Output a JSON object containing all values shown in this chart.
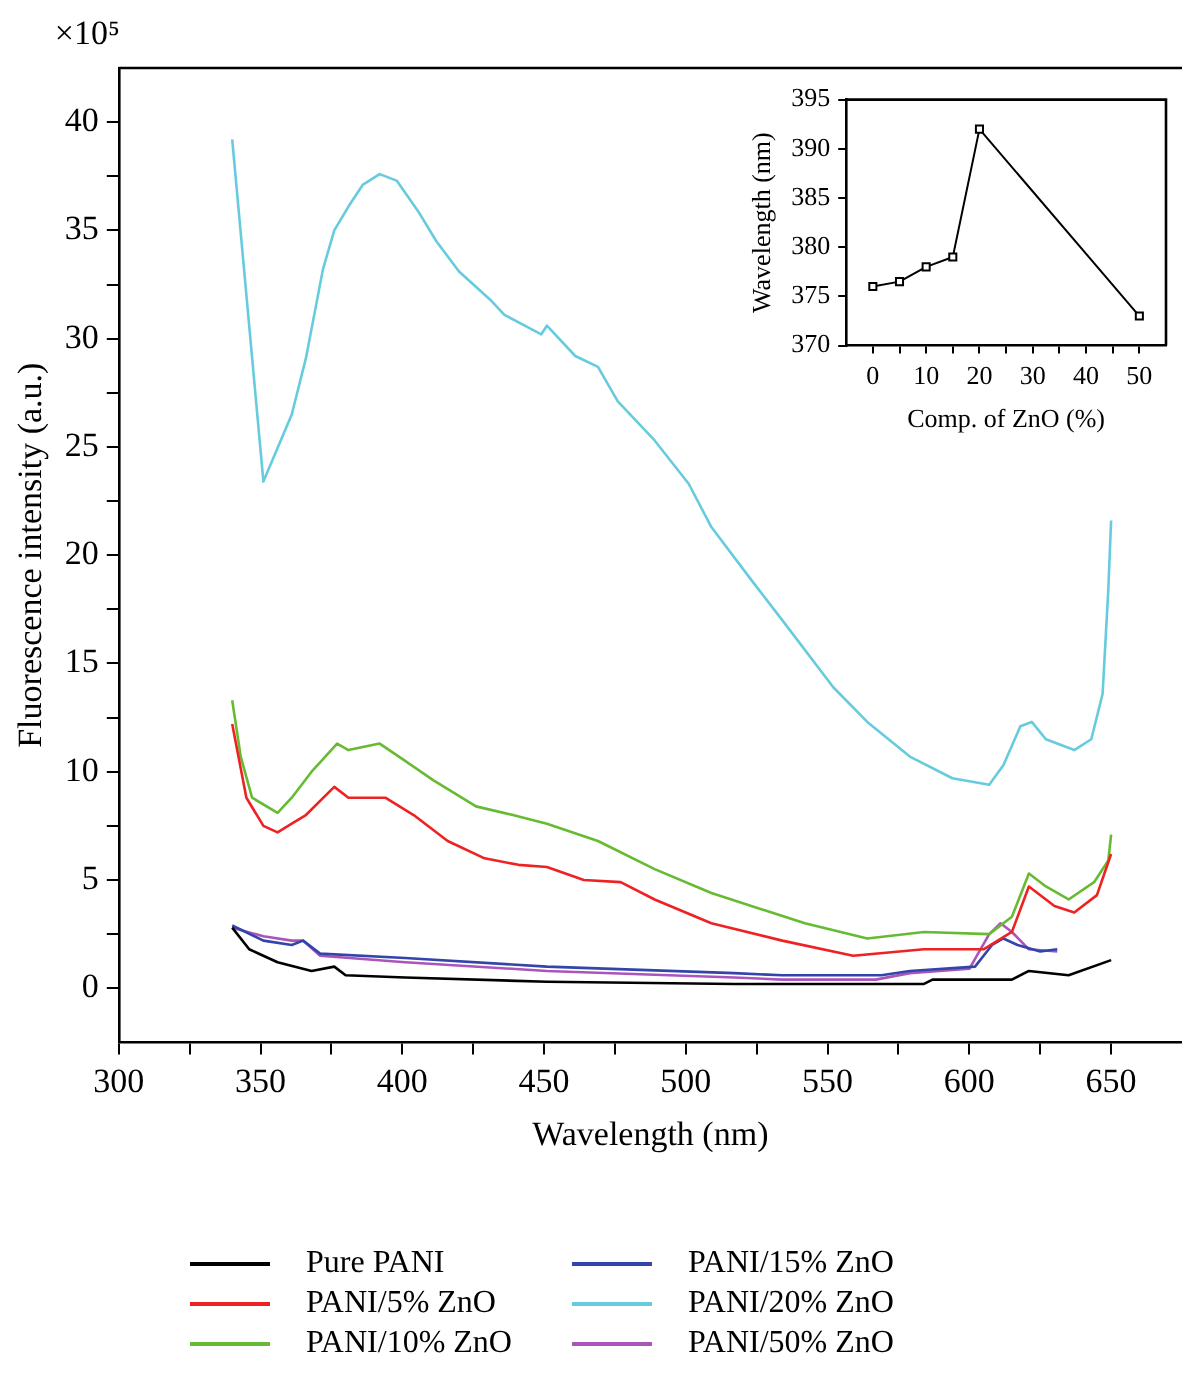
{
  "chart_data": [
    {
      "type": "line",
      "xlabel": "Wavelength (nm)",
      "ylabel": "Fluorescence intensity (a.u.)",
      "annotations": [
        "×10⁵"
      ],
      "legend": "bottom",
      "xlim": [
        300,
        675
      ],
      "xticks": [
        300,
        {
          "value": 325,
          "label": null
        },
        350,
        {
          "value": 375,
          "label": null
        },
        400,
        {
          "value": 425,
          "label": null
        },
        450,
        {
          "value": 475,
          "label": null
        },
        500,
        {
          "value": 525,
          "label": null
        },
        550,
        {
          "value": 575,
          "label": null
        },
        600,
        {
          "value": 625,
          "label": null
        },
        650
      ],
      "ylim": [
        -2.5,
        42.5
      ],
      "yticks": [
        0,
        {
          "value": 2.5,
          "label": null
        },
        5,
        {
          "value": 7.5,
          "label": null
        },
        10,
        {
          "value": 12.5,
          "label": null
        },
        15,
        {
          "value": 17.5,
          "label": null
        },
        20,
        {
          "value": 22.5,
          "label": null
        },
        25,
        {
          "value": 27.5,
          "label": null
        },
        30,
        {
          "value": 32.5,
          "label": null
        },
        35,
        {
          "value": 37.5,
          "label": null
        },
        40
      ],
      "series": [
        {
          "name": "Pure PANI",
          "color": "#000000",
          "x": [
            340,
            346,
            356,
            368,
            376,
            380,
            401,
            451,
            517,
            584,
            587,
            615,
            621,
            635,
            650
          ],
          "values": [
            2.8,
            1.8,
            1.2,
            0.8,
            1.0,
            0.6,
            0.5,
            0.3,
            0.2,
            0.2,
            0.4,
            0.4,
            0.8,
            0.6,
            1.3
          ]
        },
        {
          "name": "PANI/5% ZnO",
          "color": "#ee2222",
          "x": [
            340,
            345,
            351,
            356,
            361,
            366,
            376,
            381,
            394,
            404,
            416,
            429,
            441,
            451,
            464,
            477,
            489,
            509,
            534,
            559,
            584,
            605,
            615,
            621,
            630,
            637,
            645,
            650
          ],
          "values": [
            12.2,
            8.8,
            7.5,
            7.2,
            7.6,
            8.0,
            9.3,
            8.8,
            8.8,
            8.0,
            6.8,
            6.0,
            5.7,
            5.6,
            5.0,
            4.9,
            4.1,
            3.0,
            2.2,
            1.5,
            1.8,
            1.8,
            2.6,
            4.7,
            3.8,
            3.5,
            4.3,
            6.2
          ]
        },
        {
          "name": "PANI/10% ZnO",
          "color": "#66bb33",
          "x": [
            340,
            343,
            347,
            356,
            361,
            368,
            377,
            381,
            392,
            401,
            411,
            426,
            439,
            451,
            469,
            489,
            509,
            542,
            564,
            584,
            607,
            615,
            621,
            627,
            635,
            644,
            649,
            650
          ],
          "values": [
            13.3,
            10.7,
            8.8,
            8.1,
            8.8,
            10.0,
            11.3,
            11.0,
            11.3,
            10.5,
            9.6,
            8.4,
            8.0,
            7.6,
            6.8,
            5.5,
            4.4,
            3.0,
            2.3,
            2.6,
            2.5,
            3.3,
            5.3,
            4.7,
            4.1,
            4.9,
            5.9,
            7.1
          ]
        },
        {
          "name": "PANI/15% ZnO",
          "color": "#3344aa",
          "x": [
            340,
            351,
            361,
            365,
            371,
            401,
            451,
            517,
            534,
            569,
            579,
            602,
            608,
            612,
            617,
            625,
            631
          ],
          "values": [
            2.9,
            2.2,
            2.0,
            2.2,
            1.6,
            1.4,
            1.0,
            0.7,
            0.6,
            0.6,
            0.8,
            1.0,
            2.0,
            2.3,
            2.0,
            1.7,
            1.8
          ]
        },
        {
          "name": "PANI/20% ZnO",
          "color": "#66ccdd",
          "x": [
            340,
            351,
            361,
            366,
            372,
            376,
            381,
            386,
            392,
            398,
            406,
            412,
            420,
            431,
            436,
            449,
            451,
            461,
            469,
            476,
            489,
            501,
            509,
            524,
            534,
            552,
            564,
            579,
            594,
            607,
            612,
            618,
            622,
            627,
            637,
            643,
            647,
            649,
            650
          ],
          "values": [
            39.2,
            23.4,
            26.5,
            29.1,
            33.2,
            35.0,
            36.1,
            37.1,
            37.6,
            37.3,
            35.8,
            34.5,
            33.1,
            31.8,
            31.1,
            30.2,
            30.6,
            29.2,
            28.7,
            27.1,
            25.3,
            23.3,
            21.3,
            18.7,
            17.0,
            13.9,
            12.3,
            10.7,
            9.7,
            9.4,
            10.3,
            12.1,
            12.3,
            11.5,
            11.0,
            11.5,
            13.6,
            18.4,
            21.6
          ]
        },
        {
          "name": "PANI/50% ZnO",
          "color": "#aa55bb",
          "x": [
            340,
            351,
            361,
            365,
            371,
            401,
            451,
            517,
            534,
            567,
            579,
            600,
            607,
            611,
            615,
            621,
            631
          ],
          "values": [
            2.8,
            2.4,
            2.2,
            2.2,
            1.5,
            1.2,
            0.8,
            0.5,
            0.4,
            0.4,
            0.7,
            0.9,
            2.5,
            3.0,
            2.6,
            1.8,
            1.7
          ]
        }
      ]
    },
    {
      "type": "line",
      "xlabel": "Comp. of ZnO (%)",
      "ylabel": "Wavelength (nm)",
      "marker": "square",
      "xlim": [
        -5,
        55
      ],
      "xticks": [
        0,
        {
          "value": 5,
          "label": null
        },
        10,
        {
          "value": 15,
          "label": null
        },
        20,
        {
          "value": 25,
          "label": null
        },
        30,
        {
          "value": 35,
          "label": null
        },
        40,
        {
          "value": 45,
          "label": null
        },
        50
      ],
      "ylim": [
        370,
        395
      ],
      "yticks": [
        370,
        375,
        380,
        385,
        390,
        395
      ],
      "series": [
        {
          "color": "#000000",
          "x": [
            0,
            5,
            10,
            15,
            20,
            50
          ],
          "values": [
            376,
            376.5,
            378,
            379,
            392,
            373
          ]
        }
      ]
    }
  ]
}
